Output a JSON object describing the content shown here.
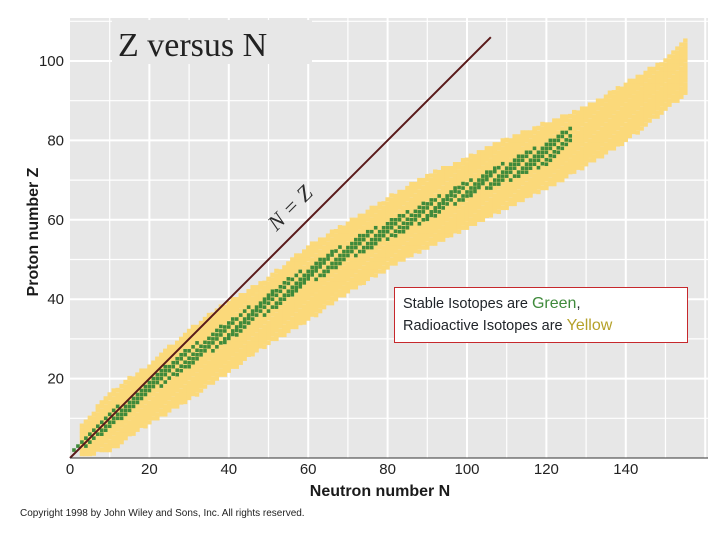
{
  "chart_data": {
    "type": "scatter",
    "title": "Z versus N",
    "xlabel": "Neutron number N",
    "ylabel": "Proton number Z",
    "xlim": [
      0,
      160
    ],
    "ylim": [
      0,
      105
    ],
    "x_ticks": [
      "0",
      "20",
      "40",
      "60",
      "80",
      "100",
      "120",
      "140"
    ],
    "y_ticks": [
      "20",
      "40",
      "60",
      "80",
      "100"
    ],
    "grid": true,
    "reference_line": {
      "label": "N = Z",
      "from": [
        0,
        0
      ],
      "to": [
        106,
        106
      ]
    },
    "series": [
      {
        "name": "Stable Isotopes",
        "color": "#3f8a3b",
        "band": {
          "n": [
            1,
            10,
            20,
            28,
            40,
            50,
            60,
            70,
            82,
            90,
            100,
            110,
            120,
            126
          ],
          "z_low": [
            1,
            8,
            16,
            22,
            30,
            37,
            44,
            50,
            56,
            60,
            66,
            70,
            74,
            80
          ],
          "z_high": [
            2,
            11,
            19,
            26,
            34,
            41,
            48,
            54,
            60,
            64,
            69,
            74,
            79,
            83
          ]
        }
      },
      {
        "name": "Radioactive Isotopes",
        "color": "#fbd97a",
        "band": {
          "n": [
            3,
            10,
            20,
            30,
            40,
            50,
            60,
            70,
            80,
            90,
            100,
            110,
            120,
            130,
            140,
            150,
            155
          ],
          "z_low": [
            1,
            2,
            9,
            15,
            22,
            29,
            35,
            42,
            48,
            53,
            58,
            63,
            68,
            74,
            80,
            88,
            92
          ],
          "z_high": [
            8,
            16,
            23,
            32,
            39,
            45,
            53,
            59,
            65,
            71,
            75,
            80,
            84,
            88,
            94,
            100,
            105
          ]
        }
      }
    ]
  },
  "legend": {
    "line1_prefix": "Stable Isotopes are ",
    "line1_color_word": "Green",
    "line1_suffix": ",",
    "line2_prefix": "Radioactive Isotopes are ",
    "line2_color_word": "Yellow"
  },
  "copyright": "Copyright 1998 by John Wiley and Sons, Inc.  All rights reserved."
}
